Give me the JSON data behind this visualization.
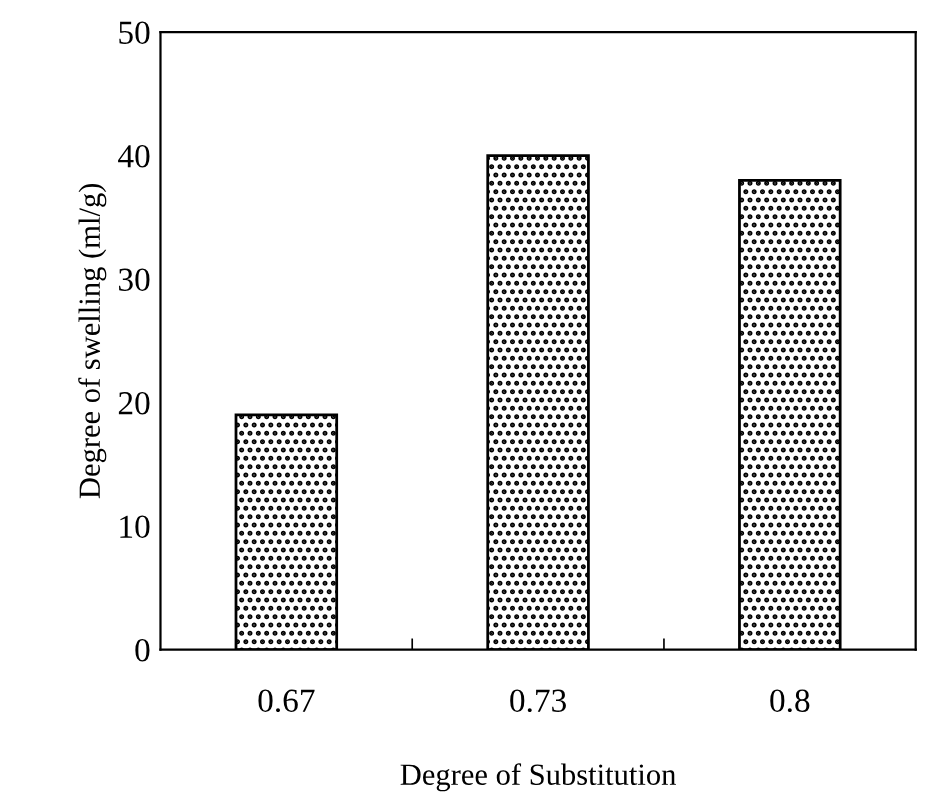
{
  "chart_data": {
    "type": "bar",
    "xlabel": "Degree of Substitution",
    "ylabel": "Degree of swelling (ml/g)",
    "categories": [
      "0.67",
      "0.73",
      "0.8"
    ],
    "values": [
      19,
      40,
      38
    ],
    "color": "#000000",
    "ylim": [
      0,
      50
    ],
    "yticks": [
      0,
      10,
      20,
      30,
      40,
      50
    ],
    "grid": false,
    "legend": false
  }
}
